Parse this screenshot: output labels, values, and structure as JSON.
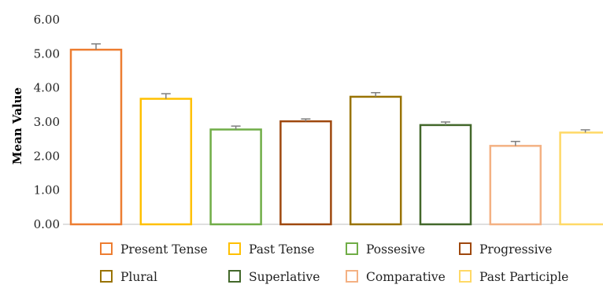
{
  "chart_data": {
    "type": "bar",
    "title": "",
    "xlabel": "",
    "ylabel": "Mean Value",
    "ylim": [
      0,
      6
    ],
    "y_ticks": [
      "0.00",
      "1.00",
      "2.00",
      "3.00",
      "4.00",
      "5.00",
      "6.00"
    ],
    "grid": false,
    "legend_position": "bottom",
    "style": "outlined bars with error bars",
    "series": [
      {
        "name": "Present Tense",
        "value": 5.12,
        "error": 0.17,
        "color": "#ED7D31"
      },
      {
        "name": "Past Tense",
        "value": 3.68,
        "error": 0.15,
        "color": "#FFC000"
      },
      {
        "name": "Possesive",
        "value": 2.78,
        "error": 0.1,
        "color": "#70AD47"
      },
      {
        "name": "Progressive",
        "value": 3.02,
        "error": 0.07,
        "color": "#9E480E"
      },
      {
        "name": "Plural",
        "value": 3.74,
        "error": 0.12,
        "color": "#997300"
      },
      {
        "name": "Superlative",
        "value": 2.91,
        "error": 0.09,
        "color": "#43682B"
      },
      {
        "name": "Comparative",
        "value": 2.3,
        "error": 0.13,
        "color": "#F4B183"
      },
      {
        "name": "Past Participle",
        "value": 2.69,
        "error": 0.08,
        "color": "#FFD966"
      }
    ],
    "error_bar_color": "#7F7F7F",
    "axis_color": "#BFBFBF"
  }
}
